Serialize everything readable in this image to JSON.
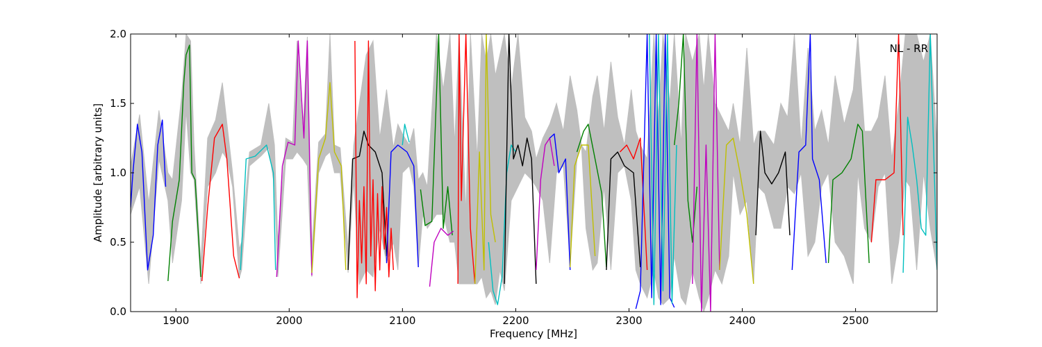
{
  "chart_data": {
    "type": "line",
    "title": "",
    "annotation": "NL - RR",
    "xlabel": "Frequency [MHz]",
    "ylabel": "Amplitude [arbitrary units]",
    "xlim": [
      1860,
      2572
    ],
    "ylim": [
      0.0,
      2.0
    ],
    "x_ticks": [
      1900,
      2000,
      2100,
      2200,
      2300,
      2400,
      2500
    ],
    "x_tick_labels": [
      "1900",
      "2000",
      "2100",
      "2200",
      "2300",
      "2400",
      "2500"
    ],
    "y_ticks": [
      0.0,
      0.5,
      1.0,
      1.5,
      2.0
    ],
    "y_tick_labels": [
      "0.0",
      "0.5",
      "1.0",
      "1.5",
      "2.0"
    ],
    "grid": false,
    "envelope": {
      "color": "#bfbfbf",
      "x": [
        1860,
        1868,
        1876,
        1885,
        1893,
        1897,
        1905,
        1909,
        1913,
        1916,
        1922,
        1928,
        1935,
        1941,
        1945,
        1950,
        1956,
        1958,
        1965,
        1975,
        1982,
        1987,
        1990,
        1997,
        2003,
        2007,
        2012,
        2016,
        2020,
        2026,
        2032,
        2036,
        2040,
        2045,
        2052,
        2057,
        2062,
        2068,
        2074,
        2080,
        2086,
        2092,
        2096,
        2100,
        2106,
        2110,
        2114,
        2118,
        2122,
        2126,
        2130,
        2136,
        2142,
        2146,
        2150,
        2156,
        2160,
        2166,
        2170,
        2174,
        2178,
        2182,
        2186,
        2190,
        2196,
        2202,
        2208,
        2214,
        2218,
        2224,
        2230,
        2236,
        2242,
        2248,
        2254,
        2258,
        2262,
        2268,
        2272,
        2278,
        2284,
        2290,
        2296,
        2302,
        2306,
        2310,
        2316,
        2322,
        2326,
        2330,
        2336,
        2340,
        2346,
        2350,
        2356,
        2362,
        2366,
        2370,
        2376,
        2382,
        2388,
        2392,
        2398,
        2404,
        2410,
        2414,
        2420,
        2428,
        2434,
        2440,
        2446,
        2452,
        2458,
        2464,
        2470,
        2476,
        2482,
        2490,
        2498,
        2502,
        2508,
        2514,
        2520,
        2526,
        2532,
        2538,
        2544,
        2548,
        2554,
        2560,
        2566,
        2572
      ],
      "upper": [
        1.05,
        1.42,
        0.78,
        1.45,
        1.0,
        0.95,
        1.55,
        2.0,
        1.95,
        1.2,
        0.35,
        1.25,
        1.38,
        1.65,
        1.36,
        1.0,
        0.45,
        0.5,
        1.15,
        1.2,
        1.5,
        1.2,
        0.5,
        1.25,
        1.22,
        1.95,
        1.28,
        1.98,
        0.45,
        1.22,
        1.28,
        2.0,
        1.2,
        1.18,
        0.45,
        1.2,
        1.5,
        1.85,
        1.95,
        1.25,
        1.6,
        1.18,
        1.35,
        1.28,
        1.2,
        1.32,
        0.95,
        1.0,
        0.9,
        1.45,
        2.0,
        1.6,
        2.0,
        1.2,
        2.0,
        0.7,
        2.0,
        1.1,
        2.0,
        1.8,
        2.0,
        1.7,
        1.85,
        2.0,
        1.6,
        2.0,
        1.4,
        1.3,
        1.1,
        1.25,
        1.35,
        1.5,
        1.3,
        1.7,
        1.45,
        1.2,
        1.15,
        1.55,
        1.7,
        1.3,
        1.8,
        1.4,
        1.2,
        1.6,
        1.3,
        1.2,
        1.1,
        2.0,
        1.4,
        2.0,
        1.5,
        2.0,
        1.2,
        2.0,
        1.8,
        2.0,
        1.6,
        2.0,
        1.5,
        1.4,
        1.3,
        1.5,
        1.2,
        1.9,
        1.2,
        1.3,
        1.3,
        1.2,
        1.5,
        1.4,
        2.0,
        1.2,
        1.9,
        1.3,
        1.45,
        1.2,
        1.7,
        1.35,
        1.6,
        2.0,
        1.3,
        1.3,
        1.4,
        1.7,
        1.1,
        1.5,
        2.0,
        2.0,
        2.0,
        1.8,
        2.0,
        1.2
      ],
      "lower": [
        0.7,
        0.9,
        0.2,
        1.1,
        0.8,
        0.35,
        0.8,
        1.45,
        1.0,
        0.95,
        0.2,
        0.9,
        1.0,
        1.15,
        1.1,
        0.9,
        0.24,
        0.3,
        1.05,
        1.12,
        1.18,
        0.9,
        0.25,
        1.1,
        1.1,
        1.15,
        1.1,
        1.05,
        0.25,
        1.0,
        1.12,
        1.15,
        1.0,
        1.0,
        0.28,
        0.95,
        0.2,
        0.3,
        0.25,
        0.6,
        0.35,
        0.5,
        0.3,
        1.0,
        1.05,
        0.9,
        0.32,
        0.7,
        0.6,
        0.65,
        0.7,
        0.7,
        0.5,
        0.5,
        0.2,
        0.2,
        0.2,
        0.2,
        0.25,
        0.1,
        0.15,
        0.05,
        0.3,
        0.15,
        0.8,
        0.9,
        1.0,
        0.95,
        0.9,
        0.8,
        0.35,
        1.0,
        1.05,
        0.35,
        1.1,
        1.2,
        0.6,
        0.3,
        0.35,
        0.9,
        0.3,
        1.0,
        1.05,
        0.8,
        0.3,
        0.2,
        0.1,
        0.3,
        0.1,
        0.05,
        0.1,
        0.4,
        0.1,
        0.05,
        0.3,
        0.1,
        0.0,
        0.1,
        0.3,
        0.2,
        0.4,
        1.0,
        0.7,
        0.8,
        0.2,
        0.9,
        0.85,
        0.6,
        0.6,
        0.9,
        0.85,
        1.0,
        0.4,
        0.5,
        0.9,
        1.0,
        0.5,
        0.4,
        0.2,
        1.0,
        0.6,
        0.5,
        0.9,
        1.0,
        0.2,
        0.5,
        0.95,
        0.9,
        0.3,
        1.0,
        0.6,
        0.3
      ]
    },
    "series": [
      {
        "color": "#0000ff",
        "x": [
          1860,
          1862,
          1866,
          1870,
          1875,
          1880,
          1884,
          1888,
          1891
        ],
        "y": [
          0.75,
          1.0,
          1.35,
          1.15,
          0.3,
          0.55,
          1.2,
          1.38,
          0.9
        ]
      },
      {
        "color": "#008000",
        "x": [
          1893,
          1897,
          1903,
          1907,
          1909,
          1912,
          1914,
          1917,
          1922
        ],
        "y": [
          0.22,
          0.65,
          0.95,
          1.65,
          1.85,
          1.92,
          1.0,
          0.95,
          0.25
        ]
      },
      {
        "color": "#ff0000",
        "x": [
          1923,
          1928,
          1934,
          1941,
          1945,
          1951,
          1956
        ],
        "y": [
          0.22,
          0.75,
          1.25,
          1.35,
          1.1,
          0.4,
          0.24
        ]
      },
      {
        "color": "#00bfbf",
        "x": [
          1957,
          1962,
          1970,
          1980,
          1986,
          1988
        ],
        "y": [
          0.3,
          1.1,
          1.12,
          1.2,
          1.0,
          0.3
        ]
      },
      {
        "color": "#bf00bf",
        "x": [
          1989,
          1994,
          1999,
          2005,
          2008,
          2013,
          2016,
          2020
        ],
        "y": [
          0.25,
          1.05,
          1.22,
          1.2,
          1.95,
          1.25,
          1.95,
          0.26
        ]
      },
      {
        "color": "#bfbf00",
        "x": [
          2020,
          2026,
          2032,
          2036,
          2040,
          2046,
          2050
        ],
        "y": [
          0.28,
          1.1,
          1.25,
          1.65,
          1.15,
          1.05,
          0.3
        ]
      },
      {
        "color": "#000000",
        "x": [
          2052,
          2056,
          2062,
          2066,
          2070,
          2076,
          2082,
          2086
        ],
        "y": [
          0.3,
          1.1,
          1.12,
          1.3,
          1.2,
          1.15,
          1.0,
          0.4
        ]
      },
      {
        "color": "#ff0000",
        "x": [
          2058,
          2060,
          2062,
          2064,
          2066,
          2068,
          2070,
          2072,
          2074,
          2076,
          2078,
          2080,
          2082,
          2084,
          2086,
          2088,
          2090,
          2092
        ],
        "y": [
          1.95,
          0.1,
          0.8,
          0.35,
          0.9,
          0.2,
          1.95,
          0.4,
          0.95,
          0.15,
          0.85,
          0.3,
          0.9,
          0.45,
          0.75,
          0.25,
          0.6,
          0.3
        ]
      },
      {
        "color": "#0000ff",
        "x": [
          2086,
          2090,
          2096,
          2104,
          2110,
          2114
        ],
        "y": [
          0.35,
          1.15,
          1.2,
          1.15,
          1.05,
          0.32
        ]
      },
      {
        "color": "#00bfbf",
        "x": [
          2100,
          2102,
          2106
        ],
        "y": [
          1.2,
          1.35,
          1.22
        ]
      },
      {
        "color": "#008000",
        "x": [
          2116,
          2120,
          2126,
          2132,
          2136,
          2140,
          2144
        ],
        "y": [
          0.88,
          0.62,
          0.65,
          2.0,
          0.6,
          0.9,
          0.55
        ]
      },
      {
        "color": "#bf00bf",
        "x": [
          2124,
          2128,
          2134,
          2140,
          2145
        ],
        "y": [
          0.18,
          0.5,
          0.6,
          0.55,
          0.58
        ]
      },
      {
        "color": "#ff0000",
        "x": [
          2149,
          2150,
          2152,
          2156,
          2160,
          2164
        ],
        "y": [
          0.2,
          2.0,
          0.8,
          2.0,
          0.6,
          0.2
        ]
      },
      {
        "color": "#bfbf00",
        "x": [
          2164,
          2168,
          2172,
          2174,
          2178,
          2182
        ],
        "y": [
          0.2,
          1.15,
          0.3,
          2.0,
          0.7,
          0.5
        ]
      },
      {
        "color": "#00bfbf",
        "x": [
          2176,
          2180,
          2184,
          2188,
          2192,
          2196,
          2200
        ],
        "y": [
          0.5,
          0.15,
          0.05,
          0.25,
          1.0,
          1.2,
          1.15
        ]
      },
      {
        "color": "#000000",
        "x": [
          2190,
          2194,
          2198,
          2202,
          2206,
          2210,
          2214,
          2218
        ],
        "y": [
          0.2,
          2.0,
          1.1,
          1.2,
          1.05,
          1.25,
          1.1,
          0.2
        ]
      },
      {
        "color": "#bf00bf",
        "x": [
          2218,
          2222,
          2226,
          2230,
          2234
        ],
        "y": [
          0.3,
          0.95,
          1.2,
          1.25,
          1.05
        ]
      },
      {
        "color": "#0000ff",
        "x": [
          2230,
          2234,
          2238,
          2244,
          2248
        ],
        "y": [
          1.25,
          1.28,
          1.0,
          1.1,
          0.3
        ]
      },
      {
        "color": "#bfbf00",
        "x": [
          2248,
          2252,
          2258,
          2264,
          2270
        ],
        "y": [
          0.32,
          1.05,
          1.2,
          1.2,
          0.4
        ]
      },
      {
        "color": "#008000",
        "x": [
          2254,
          2260,
          2264,
          2270,
          2276,
          2280
        ],
        "y": [
          1.15,
          1.3,
          1.35,
          1.1,
          0.85,
          0.32
        ]
      },
      {
        "color": "#000000",
        "x": [
          2280,
          2284,
          2290,
          2296,
          2304,
          2310
        ],
        "y": [
          0.3,
          1.1,
          1.15,
          1.05,
          1.0,
          0.32
        ]
      },
      {
        "color": "#ff0000",
        "x": [
          2292,
          2298,
          2304,
          2310,
          2316
        ],
        "y": [
          1.15,
          1.2,
          1.1,
          1.25,
          0.3
        ]
      },
      {
        "color": "#0000ff",
        "x": [
          2306,
          2310,
          2316,
          2320,
          2324,
          2328,
          2332,
          2336,
          2340
        ],
        "y": [
          0.02,
          0.15,
          2.0,
          0.1,
          2.0,
          0.05,
          2.0,
          0.1,
          0.03
        ]
      },
      {
        "color": "#00bfbf",
        "x": [
          2318,
          2322,
          2326,
          2330,
          2334,
          2338,
          2342
        ],
        "y": [
          2.0,
          0.05,
          2.0,
          0.15,
          2.0,
          0.06,
          1.2
        ]
      },
      {
        "color": "#008000",
        "x": [
          2340,
          2344,
          2348,
          2352,
          2356,
          2360
        ],
        "y": [
          1.2,
          1.5,
          2.0,
          0.8,
          0.5,
          0.9
        ]
      },
      {
        "color": "#bf00bf",
        "x": [
          2356,
          2360,
          2364,
          2368,
          2372,
          2376,
          2380
        ],
        "y": [
          0.2,
          2.0,
          0.0,
          1.2,
          0.0,
          2.0,
          0.3
        ]
      },
      {
        "color": "#bfbf00",
        "x": [
          2380,
          2386,
          2392,
          2398,
          2404,
          2410
        ],
        "y": [
          0.3,
          1.2,
          1.25,
          1.0,
          0.7,
          0.2
        ]
      },
      {
        "color": "#000000",
        "x": [
          2412,
          2416,
          2420,
          2426,
          2432,
          2438,
          2442
        ],
        "y": [
          0.55,
          1.3,
          1.0,
          0.92,
          1.0,
          1.15,
          0.55
        ]
      },
      {
        "color": "#0000ff",
        "x": [
          2444,
          2450,
          2456,
          2460,
          2462,
          2468,
          2474
        ],
        "y": [
          0.3,
          1.15,
          1.2,
          2.0,
          1.1,
          0.95,
          0.35
        ]
      },
      {
        "color": "#008000",
        "x": [
          2476,
          2480,
          2488,
          2496,
          2502,
          2506,
          2512
        ],
        "y": [
          0.35,
          0.95,
          1.0,
          1.1,
          1.35,
          1.3,
          0.35
        ]
      },
      {
        "color": "#ff0000",
        "x": [
          2514,
          2518,
          2526,
          2534,
          2538,
          2542
        ],
        "y": [
          0.5,
          0.95,
          0.95,
          1.0,
          2.0,
          0.55
        ]
      },
      {
        "color": "#00bfbf",
        "x": [
          2542,
          2546,
          2550,
          2554,
          2558,
          2562,
          2566,
          2572
        ],
        "y": [
          0.28,
          1.4,
          1.2,
          0.95,
          0.6,
          0.55,
          2.0,
          0.3
        ]
      }
    ]
  }
}
